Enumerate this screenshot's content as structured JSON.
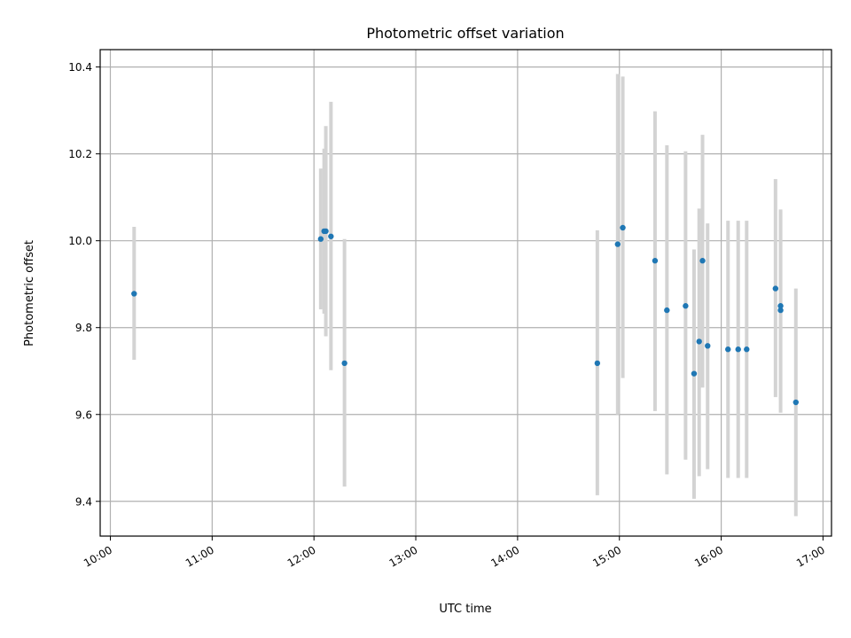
{
  "chart_data": {
    "type": "scatter",
    "title": "Photometric offset variation",
    "xlabel": "UTC time",
    "ylabel": "Photometric offset",
    "x_tick_labels": [
      "10:00",
      "11:00",
      "12:00",
      "13:00",
      "14:00",
      "15:00",
      "16:00",
      "17:00"
    ],
    "y_ticks": [
      9.4,
      9.6,
      9.8,
      10.0,
      10.2,
      10.4
    ],
    "y_tick_labels": [
      "9.4",
      "9.6",
      "9.8",
      "10.0",
      "10.2",
      "10.4"
    ],
    "xlim": [
      "09:54",
      "17:05"
    ],
    "ylim": [
      9.32,
      10.44
    ],
    "grid": true,
    "marker_color": "#1f77b4",
    "errorbar_color": "#d3d3d3",
    "points": [
      {
        "x": "10:14",
        "y": 9.878,
        "yerr_low": 9.726,
        "yerr_high": 10.032
      },
      {
        "x": "12:04",
        "y": 10.004,
        "yerr_low": 9.842,
        "yerr_high": 10.166
      },
      {
        "x": "12:06",
        "y": 10.022,
        "yerr_low": 9.832,
        "yerr_high": 10.212
      },
      {
        "x": "12:07",
        "y": 10.022,
        "yerr_low": 9.78,
        "yerr_high": 10.264
      },
      {
        "x": "12:10",
        "y": 10.01,
        "yerr_low": 9.702,
        "yerr_high": 10.32
      },
      {
        "x": "12:18",
        "y": 9.718,
        "yerr_low": 9.434,
        "yerr_high": 10.004
      },
      {
        "x": "14:47",
        "y": 9.718,
        "yerr_low": 9.414,
        "yerr_high": 10.024
      },
      {
        "x": "14:59",
        "y": 9.992,
        "yerr_low": 9.6,
        "yerr_high": 10.384
      },
      {
        "x": "15:02",
        "y": 10.03,
        "yerr_low": 9.684,
        "yerr_high": 10.378
      },
      {
        "x": "15:21",
        "y": 9.954,
        "yerr_low": 9.608,
        "yerr_high": 10.298
      },
      {
        "x": "15:28",
        "y": 9.84,
        "yerr_low": 9.462,
        "yerr_high": 10.22
      },
      {
        "x": "15:39",
        "y": 9.85,
        "yerr_low": 9.496,
        "yerr_high": 10.206
      },
      {
        "x": "15:44",
        "y": 9.694,
        "yerr_low": 9.406,
        "yerr_high": 9.98
      },
      {
        "x": "15:47",
        "y": 9.768,
        "yerr_low": 9.458,
        "yerr_high": 10.074
      },
      {
        "x": "15:49",
        "y": 9.954,
        "yerr_low": 9.662,
        "yerr_high": 10.244
      },
      {
        "x": "15:52",
        "y": 9.758,
        "yerr_low": 9.474,
        "yerr_high": 10.04
      },
      {
        "x": "16:04",
        "y": 9.75,
        "yerr_low": 9.454,
        "yerr_high": 10.046
      },
      {
        "x": "16:10",
        "y": 9.75,
        "yerr_low": 9.454,
        "yerr_high": 10.046
      },
      {
        "x": "16:15",
        "y": 9.75,
        "yerr_low": 9.454,
        "yerr_high": 10.046
      },
      {
        "x": "16:32",
        "y": 9.89,
        "yerr_low": 9.64,
        "yerr_high": 10.142
      },
      {
        "x": "16:35",
        "y": 9.84,
        "yerr_low": 9.604,
        "yerr_high": 10.072
      },
      {
        "x": "16:35",
        "y": 9.85,
        "yerr_low": 9.634,
        "yerr_high": 10.068
      },
      {
        "x": "16:44",
        "y": 9.628,
        "yerr_low": 9.366,
        "yerr_high": 9.89
      }
    ]
  }
}
